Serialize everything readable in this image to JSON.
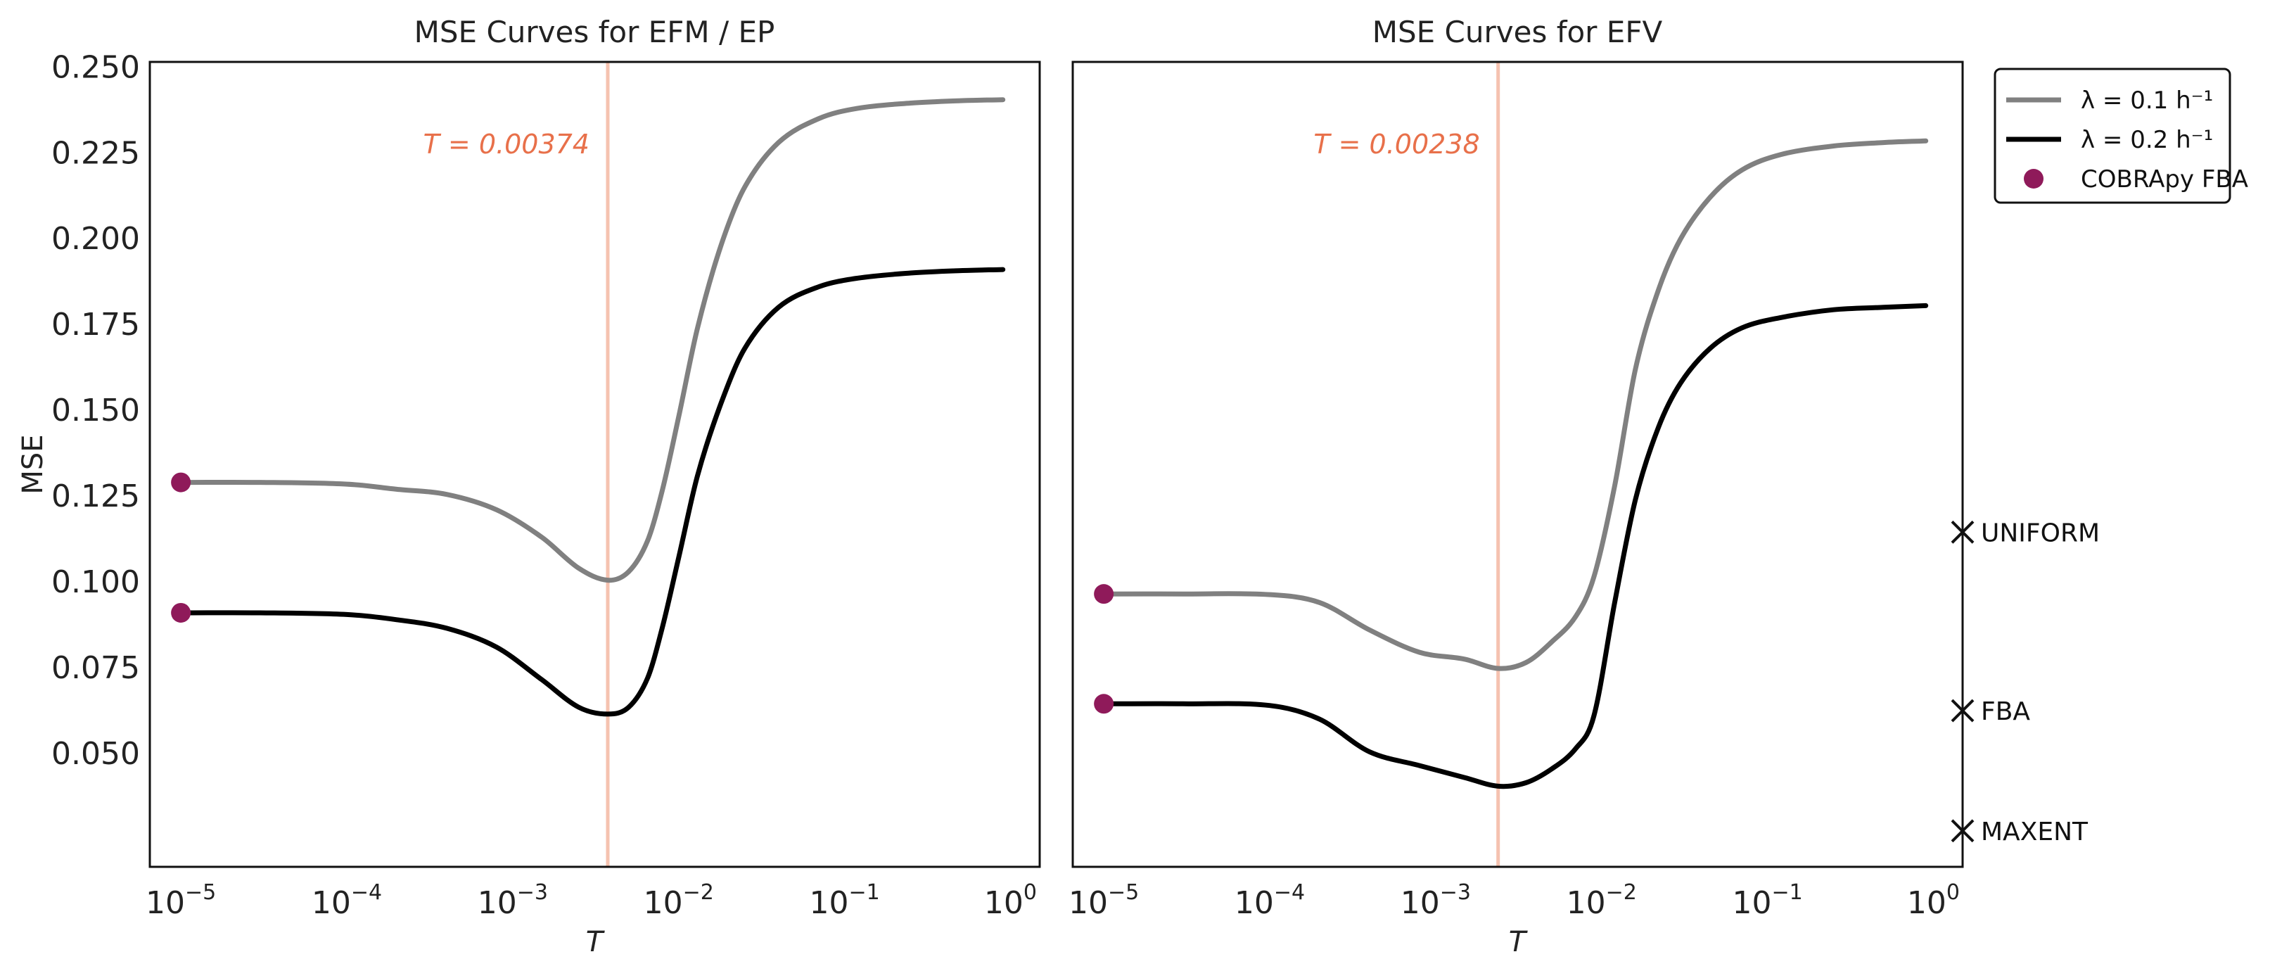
{
  "colors": {
    "lambda01": "#808080",
    "lambda02": "#000000",
    "cobra": "#8f1a5a",
    "vline": "#f5c2b0",
    "annot": "#e8704a",
    "frame": "#111111"
  },
  "legend": [
    {
      "label": "λ = 0.1 h⁻¹",
      "kind": "line",
      "color_key": "lambda01"
    },
    {
      "label": "λ = 0.2 h⁻¹",
      "kind": "line",
      "color_key": "lambda02"
    },
    {
      "label": "COBRApy FBA",
      "kind": "dot",
      "color_key": "cobra"
    }
  ],
  "chart_data": [
    {
      "type": "line",
      "title": "MSE Curves for EFM / EP",
      "xlabel": "T",
      "ylabel": "MSE",
      "xscale": "log",
      "xlim": [
        6.5e-06,
        1.5
      ],
      "ylim": [
        0.017,
        0.2515
      ],
      "xticks": [
        {
          "value": 1e-05,
          "base": "10",
          "exp": "−5"
        },
        {
          "value": 0.0001,
          "base": "10",
          "exp": "−4"
        },
        {
          "value": 0.001,
          "base": "10",
          "exp": "−3"
        },
        {
          "value": 0.01,
          "base": "10",
          "exp": "−2"
        },
        {
          "value": 0.1,
          "base": "10",
          "exp": "−1"
        },
        {
          "value": 1,
          "base": "10",
          "exp": "0"
        }
      ],
      "yticks": [
        {
          "value": 0.05,
          "label": "0.050"
        },
        {
          "value": 0.075,
          "label": "0.075"
        },
        {
          "value": 0.1,
          "label": "0.100"
        },
        {
          "value": 0.125,
          "label": "0.125"
        },
        {
          "value": 0.15,
          "label": "0.150"
        },
        {
          "value": 0.175,
          "label": "0.175"
        },
        {
          "value": 0.2,
          "label": "0.200"
        },
        {
          "value": 0.225,
          "label": "0.225"
        },
        {
          "value": 0.25,
          "label": "0.250"
        }
      ],
      "grid": false,
      "vline": {
        "x": 0.00374,
        "label": "T = 0.00374"
      },
      "series": [
        {
          "name": "λ = 0.1 h⁻¹",
          "color_key": "lambda01",
          "x": [
            1e-05,
            3e-05,
            0.0001,
            0.0002,
            0.0004,
            0.0008,
            0.0015,
            0.0025,
            0.00374,
            0.005,
            0.0065,
            0.008,
            0.01,
            0.013,
            0.018,
            0.025,
            0.04,
            0.07,
            0.12,
            0.25,
            0.5,
            0.9
          ],
          "y": [
            0.129,
            0.129,
            0.1285,
            0.127,
            0.1255,
            0.121,
            0.113,
            0.104,
            0.1005,
            0.103,
            0.112,
            0.127,
            0.148,
            0.174,
            0.198,
            0.215,
            0.228,
            0.235,
            0.238,
            0.2395,
            0.2402,
            0.2405
          ]
        },
        {
          "name": "λ = 0.2 h⁻¹",
          "color_key": "lambda02",
          "x": [
            1e-05,
            3e-05,
            0.0001,
            0.0002,
            0.0004,
            0.0008,
            0.0015,
            0.0025,
            0.00374,
            0.005,
            0.0065,
            0.008,
            0.01,
            0.013,
            0.018,
            0.025,
            0.04,
            0.07,
            0.12,
            0.25,
            0.5,
            0.9
          ],
          "y": [
            0.091,
            0.091,
            0.0905,
            0.089,
            0.0865,
            0.081,
            0.0715,
            0.0635,
            0.0615,
            0.0635,
            0.072,
            0.087,
            0.107,
            0.131,
            0.152,
            0.168,
            0.18,
            0.186,
            0.1885,
            0.19,
            0.1907,
            0.191
          ]
        }
      ],
      "markers": [
        {
          "name": "COBRApy FBA",
          "x": 1e-05,
          "y": 0.129,
          "color_key": "cobra"
        },
        {
          "name": "COBRApy FBA",
          "x": 1e-05,
          "y": 0.091,
          "color_key": "cobra"
        }
      ]
    },
    {
      "type": "line",
      "title": "MSE Curves for EFV",
      "xlabel": "T",
      "ylabel": "",
      "xscale": "log",
      "xlim": [
        6.5e-06,
        1.5
      ],
      "ylim": [
        0.017,
        0.2515
      ],
      "xticks": [
        {
          "value": 1e-05,
          "base": "10",
          "exp": "−5"
        },
        {
          "value": 0.0001,
          "base": "10",
          "exp": "−4"
        },
        {
          "value": 0.001,
          "base": "10",
          "exp": "−3"
        },
        {
          "value": 0.01,
          "base": "10",
          "exp": "−2"
        },
        {
          "value": 0.1,
          "base": "10",
          "exp": "−1"
        },
        {
          "value": 1,
          "base": "10",
          "exp": "0"
        }
      ],
      "yticks": [],
      "grid": false,
      "vline": {
        "x": 0.00238,
        "label": "T = 0.00238"
      },
      "series": [
        {
          "name": "λ = 0.1 h⁻¹",
          "color_key": "lambda01",
          "x": [
            1e-05,
            3e-05,
            0.0001,
            0.0002,
            0.0004,
            0.0008,
            0.0015,
            0.00238,
            0.0035,
            0.005,
            0.007,
            0.009,
            0.012,
            0.016,
            0.022,
            0.03,
            0.045,
            0.07,
            0.12,
            0.25,
            0.5,
            0.9
          ],
          "y": [
            0.0965,
            0.0965,
            0.0963,
            0.094,
            0.086,
            0.0795,
            0.0775,
            0.0748,
            0.0765,
            0.0825,
            0.09,
            0.1015,
            0.128,
            0.162,
            0.185,
            0.2,
            0.212,
            0.22,
            0.2245,
            0.227,
            0.228,
            0.2285
          ]
        },
        {
          "name": "λ = 0.2 h⁻¹",
          "color_key": "lambda02",
          "x": [
            1e-05,
            3e-05,
            0.0001,
            0.0002,
            0.0004,
            0.0008,
            0.0015,
            0.00238,
            0.0035,
            0.005,
            0.007,
            0.009,
            0.012,
            0.016,
            0.022,
            0.03,
            0.045,
            0.07,
            0.12,
            0.25,
            0.5,
            0.9
          ],
          "y": [
            0.0645,
            0.0645,
            0.064,
            0.06,
            0.0505,
            0.0465,
            0.043,
            0.0405,
            0.0415,
            0.0455,
            0.0515,
            0.061,
            0.094,
            0.124,
            0.145,
            0.158,
            0.168,
            0.174,
            0.177,
            0.1793,
            0.18,
            0.1805
          ]
        }
      ],
      "markers": [
        {
          "name": "COBRApy FBA",
          "x": 1e-05,
          "y": 0.0965,
          "color_key": "cobra"
        },
        {
          "name": "COBRApy FBA",
          "x": 1e-05,
          "y": 0.0645,
          "color_key": "cobra"
        }
      ],
      "x_markers": [
        {
          "label": "UNIFORM",
          "y": 0.1145
        },
        {
          "label": "FBA",
          "y": 0.0625
        },
        {
          "label": "MAXENT",
          "y": 0.0275
        }
      ]
    }
  ]
}
